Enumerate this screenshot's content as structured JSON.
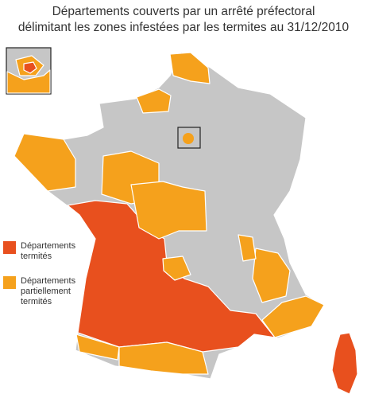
{
  "title": [
    "Départements couverts par un arrêté préfectoral",
    "délimitant les zones infestées par les termites au 31/12/2010"
  ],
  "legend": [
    {
      "label": "Départements termités",
      "color": "#e8501e"
    },
    {
      "label": "Départements partiellement termités",
      "color": "#f5a11c"
    }
  ]
}
